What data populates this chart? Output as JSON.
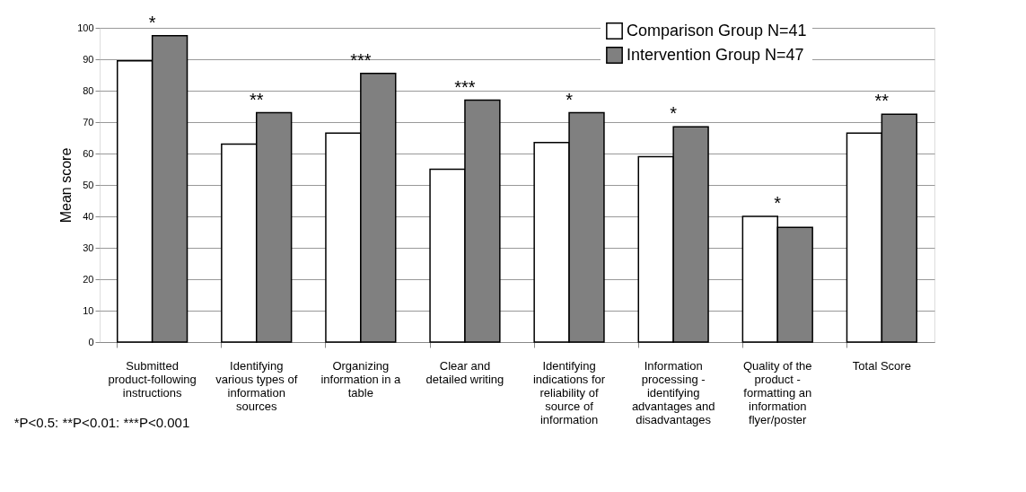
{
  "chart_data": {
    "type": "bar",
    "ylabel": "Mean score",
    "categories": [
      "Submitted product-following instructions",
      "Identifying various types of information sources",
      "Organizing information in a table",
      "Clear and detailed writing",
      "Identifying indications for reliability of source of information",
      "Information processing - identifying advantages and disadvantages",
      "Quality of the product - formatting an information flyer/poster",
      "Total Score"
    ],
    "series": [
      {
        "name": "Comparison Group N=41",
        "color": "#ffffff",
        "values": [
          89.5,
          63,
          66.5,
          55,
          63.5,
          59,
          40,
          66.5
        ]
      },
      {
        "name": "Intervention Group N=47",
        "color": "#808080",
        "values": [
          97.5,
          73,
          85.5,
          77,
          73,
          68.5,
          36.5,
          72.5
        ]
      }
    ],
    "ylim": [
      0,
      100
    ],
    "yticks": [
      0,
      10,
      20,
      30,
      40,
      50,
      60,
      70,
      80,
      90,
      100
    ],
    "grid": "y",
    "legend": "top right",
    "annotations": [
      {
        "text": "*",
        "x": "Submitted product-following instructions",
        "y": 97.5
      },
      {
        "text": "**",
        "x": "Identifying various types of information sources",
        "y": 73
      },
      {
        "text": "***",
        "x": "Organizing information in a table",
        "y": 85.5
      },
      {
        "text": "***",
        "x": "Clear and detailed writing",
        "y": 77
      },
      {
        "text": "*",
        "x": "Identifying indications for reliability of source of information",
        "y": 73
      },
      {
        "text": "*",
        "x": "Information processing - identifying advantages and disadvantages",
        "y": 68.5
      },
      {
        "text": "*",
        "x": "Quality of the product - formatting an information flyer/poster",
        "y": 40
      },
      {
        "text": "**",
        "x": "Total Score",
        "y": 72.5
      },
      "*P<0.5: **P<0.01: ***P<0.001"
    ]
  }
}
